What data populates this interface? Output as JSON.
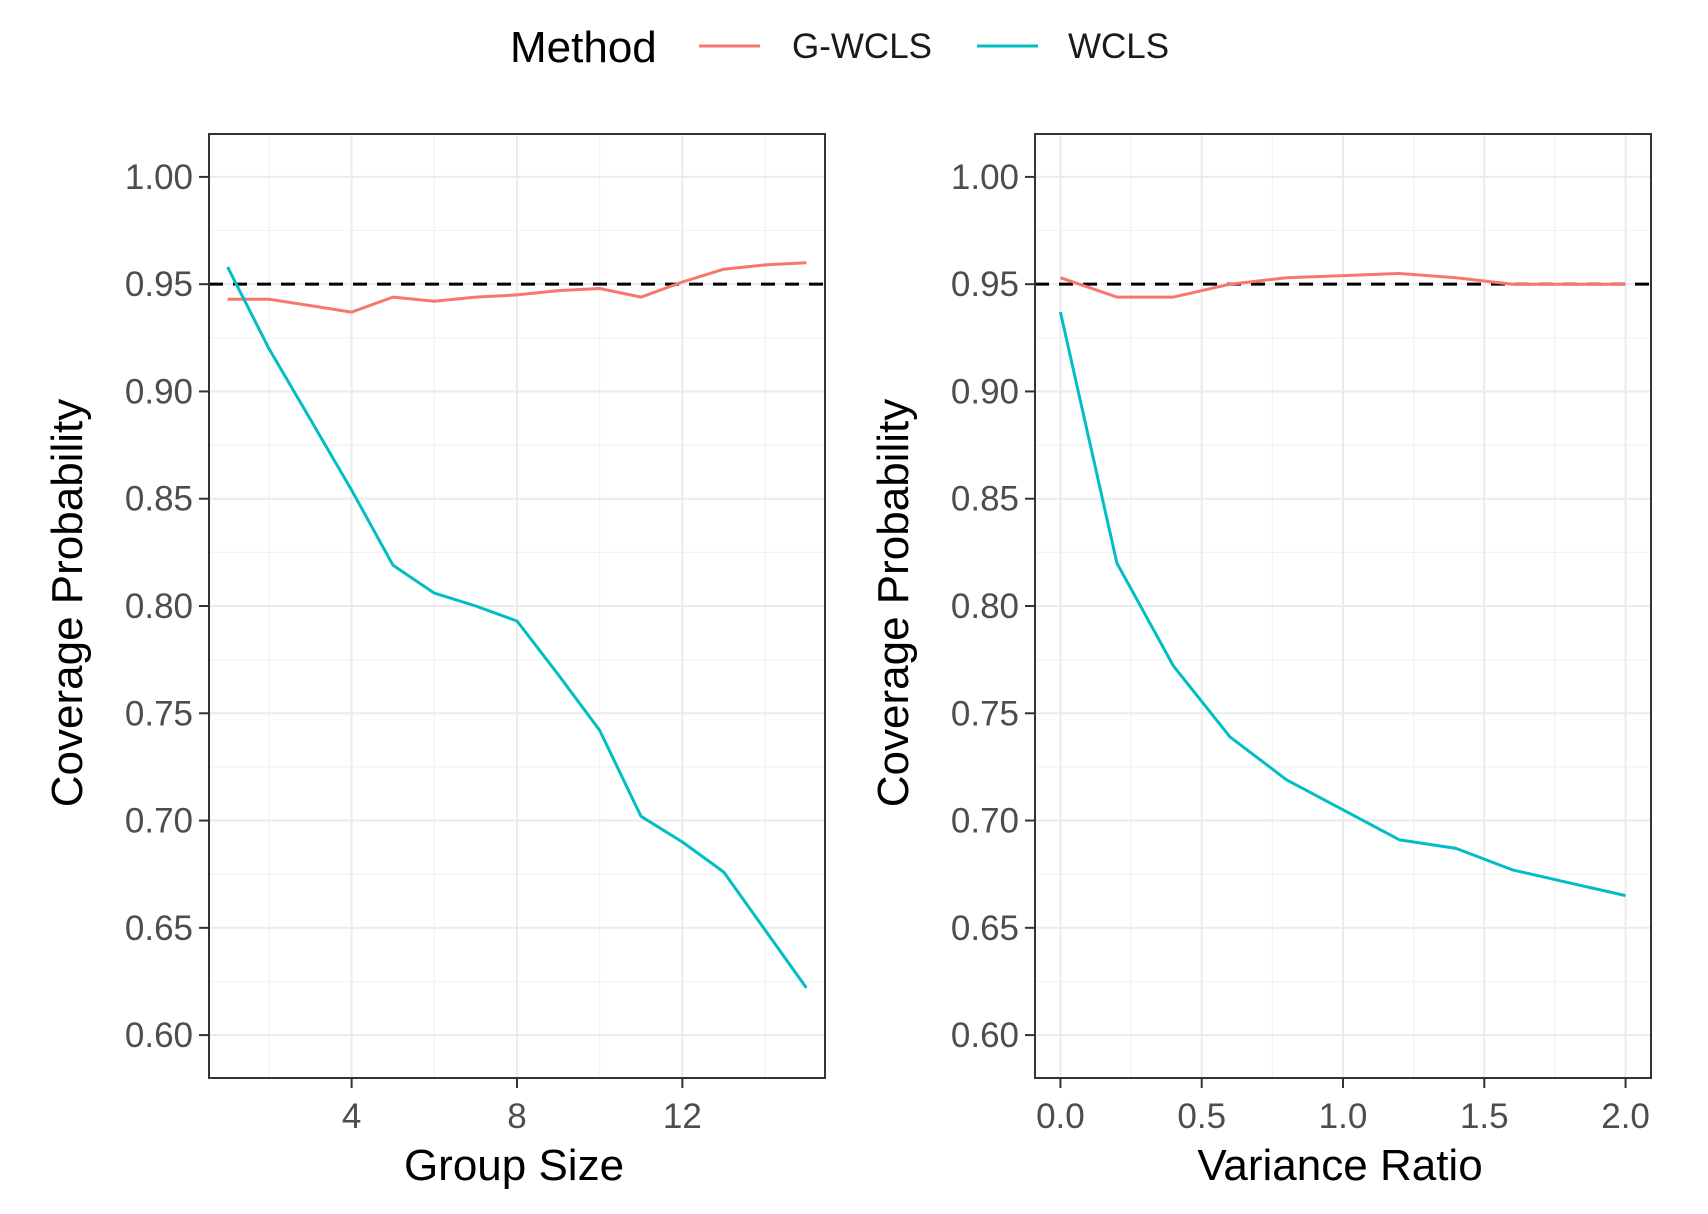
{
  "legend": {
    "title": "Method",
    "entries": [
      {
        "label": "G-WCLS",
        "color": "#F8766D"
      },
      {
        "label": "WCLS",
        "color": "#00BFC4"
      }
    ]
  },
  "chart_data": [
    {
      "type": "line",
      "xlabel": "Group Size",
      "ylabel": "Coverage Probability",
      "xlim": [
        0.55,
        15.45
      ],
      "ylim": [
        0.58,
        1.02
      ],
      "x_ticks": [
        4,
        8,
        12
      ],
      "x_tick_labels": [
        "4",
        "8",
        "12"
      ],
      "y_ticks": [
        0.6,
        0.65,
        0.7,
        0.75,
        0.8,
        0.85,
        0.9,
        0.95,
        1.0
      ],
      "y_tick_labels": [
        "0.60",
        "0.65",
        "0.70",
        "0.75",
        "0.80",
        "0.85",
        "0.90",
        "0.95",
        "1.00"
      ],
      "reference_line": {
        "y": 0.95,
        "style": "dashed",
        "color": "#000000"
      },
      "grid": true,
      "series": [
        {
          "name": "G-WCLS",
          "color": "#F8766D",
          "x": [
            1,
            2,
            3,
            4,
            5,
            6,
            7,
            8,
            9,
            10,
            11,
            12,
            13,
            14,
            15
          ],
          "y": [
            0.943,
            0.943,
            0.94,
            0.937,
            0.944,
            0.942,
            0.944,
            0.945,
            0.947,
            0.948,
            0.944,
            0.951,
            0.957,
            0.959,
            0.96
          ]
        },
        {
          "name": "WCLS",
          "color": "#00BFC4",
          "x": [
            1,
            2,
            3,
            4,
            5,
            6,
            7,
            8,
            9,
            10,
            11,
            12,
            13,
            14,
            15
          ],
          "y": [
            0.958,
            0.92,
            0.887,
            0.854,
            0.819,
            0.806,
            0.8,
            0.793,
            0.768,
            0.742,
            0.702,
            0.69,
            0.676,
            0.649,
            0.622
          ]
        }
      ]
    },
    {
      "type": "line",
      "xlabel": "Variance Ratio",
      "ylabel": "Coverage Probability",
      "xlim": [
        -0.09,
        2.09
      ],
      "ylim": [
        0.58,
        1.02
      ],
      "x_ticks": [
        0.0,
        0.5,
        1.0,
        1.5,
        2.0
      ],
      "x_tick_labels": [
        "0.0",
        "0.5",
        "1.0",
        "1.5",
        "2.0"
      ],
      "y_ticks": [
        0.6,
        0.65,
        0.7,
        0.75,
        0.8,
        0.85,
        0.9,
        0.95,
        1.0
      ],
      "y_tick_labels": [
        "0.60",
        "0.65",
        "0.70",
        "0.75",
        "0.80",
        "0.85",
        "0.90",
        "0.95",
        "1.00"
      ],
      "reference_line": {
        "y": 0.95,
        "style": "dashed",
        "color": "#000000"
      },
      "grid": true,
      "series": [
        {
          "name": "G-WCLS",
          "color": "#F8766D",
          "x": [
            0.0,
            0.2,
            0.4,
            0.6,
            0.8,
            1.0,
            1.2,
            1.4,
            1.6,
            1.8,
            2.0
          ],
          "y": [
            0.953,
            0.944,
            0.944,
            0.95,
            0.953,
            0.954,
            0.955,
            0.953,
            0.95,
            0.95,
            0.95
          ]
        },
        {
          "name": "WCLS",
          "color": "#00BFC4",
          "x": [
            0.0,
            0.2,
            0.4,
            0.6,
            0.8,
            1.0,
            1.2,
            1.4,
            1.6,
            1.8,
            2.0
          ],
          "y": [
            0.937,
            0.82,
            0.772,
            0.739,
            0.719,
            0.705,
            0.691,
            0.687,
            0.677,
            0.671,
            0.665
          ]
        }
      ]
    }
  ]
}
